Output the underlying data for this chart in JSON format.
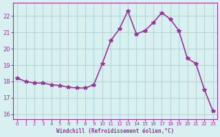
{
  "x": [
    0,
    1,
    2,
    3,
    4,
    5,
    6,
    7,
    8,
    9,
    10,
    11,
    12,
    13,
    14,
    15,
    16,
    17,
    18,
    19,
    20,
    21,
    22,
    23
  ],
  "y": [
    18.2,
    18.0,
    17.9,
    17.9,
    17.8,
    17.75,
    17.65,
    17.6,
    17.6,
    17.8,
    19.1,
    20.5,
    21.2,
    22.3,
    20.9,
    21.1,
    21.6,
    22.2,
    21.8,
    21.1,
    19.4,
    19.1,
    17.5,
    16.2
  ],
  "line_color": "#993399",
  "marker": "*",
  "bg_color": "#d9f0f0",
  "grid_color": "#b0d8d8",
  "xlabel": "Windchill (Refroidissement éolien,°C)",
  "yticks": [
    16,
    17,
    18,
    19,
    20,
    21,
    22
  ],
  "xtick_labels": [
    "0",
    "1",
    "2",
    "3",
    "4",
    "5",
    "6",
    "7",
    "8",
    "9",
    "10",
    "11",
    "12",
    "13",
    "14",
    "15",
    "16",
    "17",
    "18",
    "19",
    "20",
    "21",
    "22",
    "23"
  ],
  "ylim": [
    15.7,
    22.8
  ],
  "xlim": [
    -0.5,
    23.5
  ],
  "axis_color": "#993399",
  "tick_color": "#993399",
  "label_color": "#993399"
}
